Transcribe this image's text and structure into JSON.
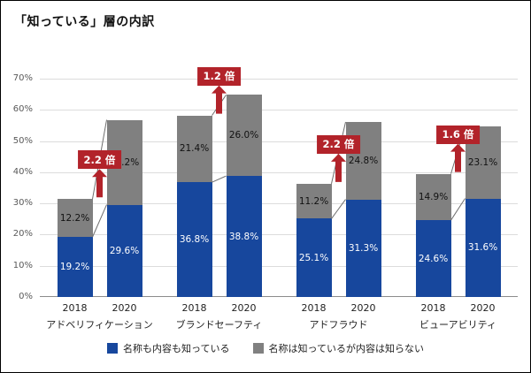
{
  "title": "「知っている」層の内訳",
  "colors": {
    "blue": "#17479d",
    "gray": "#808080",
    "red": "#b2232a",
    "grid": "#dcdcdc",
    "axis_text": "#595959",
    "connector": "#6e6e6e"
  },
  "chart_data": {
    "type": "bar",
    "stacked": true,
    "title": "「知っている」層の内訳",
    "ylim": [
      0,
      70
    ],
    "ytick_step": 10,
    "yticks": [
      "0%",
      "10%",
      "20%",
      "30%",
      "40%",
      "50%",
      "60%",
      "70%"
    ],
    "grid": true,
    "legend_position": "bottom",
    "legend": [
      {
        "label": "名称も内容も知っている",
        "color": "blue"
      },
      {
        "label": "名称は知っているが内容は知らない",
        "color": "gray"
      }
    ],
    "groups": [
      {
        "label": "アドベリフィケーション",
        "ratio": "2.2 倍",
        "bars": [
          {
            "year": "2018",
            "segments": [
              {
                "value": 19.2,
                "label": "19.2%"
              },
              {
                "value": 12.2,
                "label": "12.2%"
              }
            ]
          },
          {
            "year": "2020",
            "segments": [
              {
                "value": 29.6,
                "label": "29.6%"
              },
              {
                "value": 27.2,
                "label": "27.2%"
              }
            ]
          }
        ]
      },
      {
        "label": "ブランドセーフティ",
        "ratio": "1.2 倍",
        "bars": [
          {
            "year": "2018",
            "segments": [
              {
                "value": 36.8,
                "label": "36.8%"
              },
              {
                "value": 21.4,
                "label": "21.4%"
              }
            ]
          },
          {
            "year": "2020",
            "segments": [
              {
                "value": 38.8,
                "label": "38.8%"
              },
              {
                "value": 26.0,
                "label": "26.0%"
              }
            ]
          }
        ]
      },
      {
        "label": "アドフラウド",
        "ratio": "2.2 倍",
        "bars": [
          {
            "year": "2018",
            "segments": [
              {
                "value": 25.1,
                "label": "25.1%"
              },
              {
                "value": 11.2,
                "label": "11.2%"
              }
            ]
          },
          {
            "year": "2020",
            "segments": [
              {
                "value": 31.3,
                "label": "31.3%"
              },
              {
                "value": 24.8,
                "label": "24.8%"
              }
            ]
          }
        ]
      },
      {
        "label": "ビューアビリティ",
        "ratio": "1.6 倍",
        "bars": [
          {
            "year": "2018",
            "segments": [
              {
                "value": 24.6,
                "label": "24.6%"
              },
              {
                "value": 14.9,
                "label": "14.9%"
              }
            ]
          },
          {
            "year": "2020",
            "segments": [
              {
                "value": 31.6,
                "label": "31.6%"
              },
              {
                "value": 23.1,
                "label": "23.1%"
              }
            ]
          }
        ]
      }
    ]
  }
}
